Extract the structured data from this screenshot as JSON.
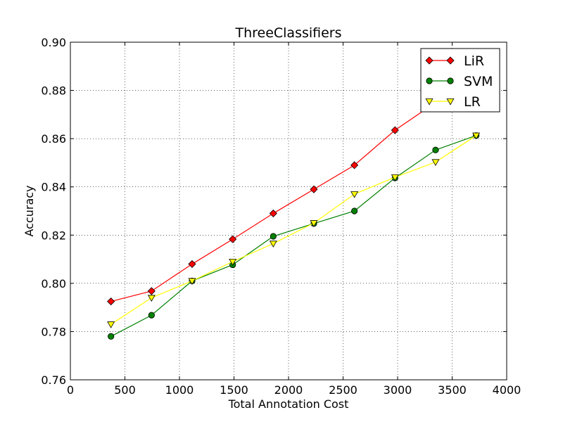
{
  "chart_data": {
    "type": "line",
    "title": "ThreeClassifiers",
    "xlabel": "Total Annotation Cost",
    "ylabel": "Accuracy",
    "xlim": [
      0,
      4000
    ],
    "ylim": [
      0.76,
      0.9
    ],
    "xticks": [
      0,
      500,
      1000,
      1500,
      2000,
      2500,
      3000,
      3500,
      4000
    ],
    "xtick_labels": [
      "0",
      "500",
      "1000",
      "1500",
      "2000",
      "2500",
      "3000",
      "3500",
      "4000"
    ],
    "yticks": [
      0.76,
      0.78,
      0.8,
      0.82,
      0.84,
      0.86,
      0.88,
      0.9
    ],
    "ytick_labels": [
      "0.76",
      "0.78",
      "0.80",
      "0.82",
      "0.84",
      "0.86",
      "0.88",
      "0.90"
    ],
    "grid": true,
    "legend_position": "top-right",
    "series": [
      {
        "name": "LiR",
        "color": "#ff0000",
        "marker": "diamond",
        "x": [
          372,
          744,
          1116,
          1488,
          1860,
          2232,
          2604,
          2976,
          3348,
          3720
        ],
        "y": [
          0.7925,
          0.7968,
          0.808,
          0.8183,
          0.829,
          0.839,
          0.849,
          0.8635,
          0.875,
          0.886
        ]
      },
      {
        "name": "SVM",
        "color": "#008000",
        "marker": "circle",
        "x": [
          372,
          744,
          1116,
          1488,
          1860,
          2232,
          2604,
          2976,
          3348,
          3720
        ],
        "y": [
          0.778,
          0.7868,
          0.801,
          0.8077,
          0.8195,
          0.8248,
          0.83,
          0.8437,
          0.8553,
          0.8613
        ]
      },
      {
        "name": "LR",
        "color": "#ffff00",
        "marker": "triangle-down",
        "x": [
          372,
          744,
          1116,
          1488,
          1860,
          2232,
          2604,
          2976,
          3348,
          3720
        ],
        "y": [
          0.783,
          0.794,
          0.801,
          0.809,
          0.8165,
          0.825,
          0.837,
          0.844,
          0.8503,
          0.8613
        ]
      }
    ]
  }
}
